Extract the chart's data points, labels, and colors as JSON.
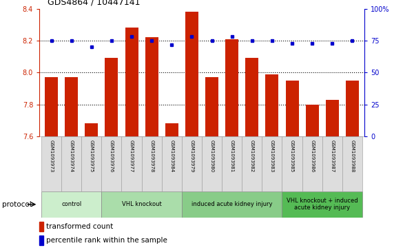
{
  "title": "GDS4864 / 10447141",
  "samples": [
    "GSM1093973",
    "GSM1093974",
    "GSM1093975",
    "GSM1093976",
    "GSM1093977",
    "GSM1093978",
    "GSM1093984",
    "GSM1093979",
    "GSM1093980",
    "GSM1093981",
    "GSM1093982",
    "GSM1093983",
    "GSM1093985",
    "GSM1093986",
    "GSM1093987",
    "GSM1093988"
  ],
  "transformed_count": [
    7.97,
    7.97,
    7.68,
    8.09,
    8.28,
    8.22,
    7.68,
    8.38,
    7.97,
    8.21,
    8.09,
    7.99,
    7.95,
    7.8,
    7.83,
    7.95
  ],
  "percentile_rank": [
    75,
    75,
    70,
    75,
    78,
    75,
    72,
    78,
    75,
    78,
    75,
    75,
    73,
    73,
    73,
    75
  ],
  "ylim_left": [
    7.6,
    8.4
  ],
  "ylim_right": [
    0,
    100
  ],
  "yticks_left": [
    7.6,
    7.8,
    8.0,
    8.2,
    8.4
  ],
  "yticks_right": [
    0,
    25,
    50,
    75,
    100
  ],
  "bar_color": "#cc2200",
  "dot_color": "#0000cc",
  "groups": [
    {
      "label": "control",
      "start": 0,
      "end": 2,
      "color": "#cceecc"
    },
    {
      "label": "VHL knockout",
      "start": 3,
      "end": 6,
      "color": "#aaddaa"
    },
    {
      "label": "induced acute kidney injury",
      "start": 7,
      "end": 11,
      "color": "#88cc88"
    },
    {
      "label": "VHL knockout + induced\nacute kidney injury",
      "start": 12,
      "end": 15,
      "color": "#55bb55"
    }
  ],
  "protocol_label": "protocol",
  "legend_bar_label": "transformed count",
  "legend_dot_label": "percentile rank within the sample",
  "tick_color_left": "#cc2200",
  "tick_color_right": "#0000cc"
}
